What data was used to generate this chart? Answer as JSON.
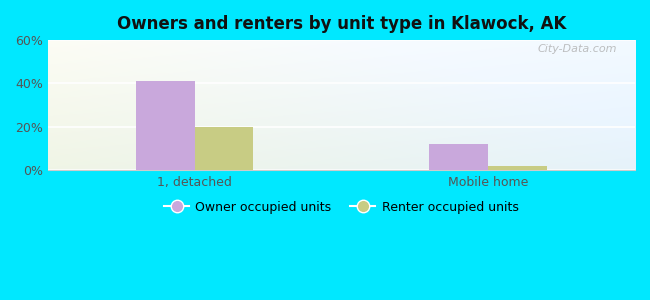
{
  "title": "Owners and renters by unit type in Klawock, AK",
  "categories": [
    "1, detached",
    "Mobile home"
  ],
  "owner_values": [
    41,
    12
  ],
  "renter_values": [
    20,
    2
  ],
  "owner_color": "#c9a8dc",
  "renter_color": "#c8cc84",
  "ylim": [
    0,
    60
  ],
  "yticks": [
    0,
    20,
    40,
    60
  ],
  "ytick_labels": [
    "0%",
    "20%",
    "40%",
    "60%"
  ],
  "background_outer": "#00e8ff",
  "legend_owner": "Owner occupied units",
  "legend_renter": "Renter occupied units",
  "bar_width": 0.28,
  "watermark": "City-Data.com",
  "group_centers": [
    0.7,
    2.1
  ],
  "xlim": [
    0,
    2.8
  ]
}
